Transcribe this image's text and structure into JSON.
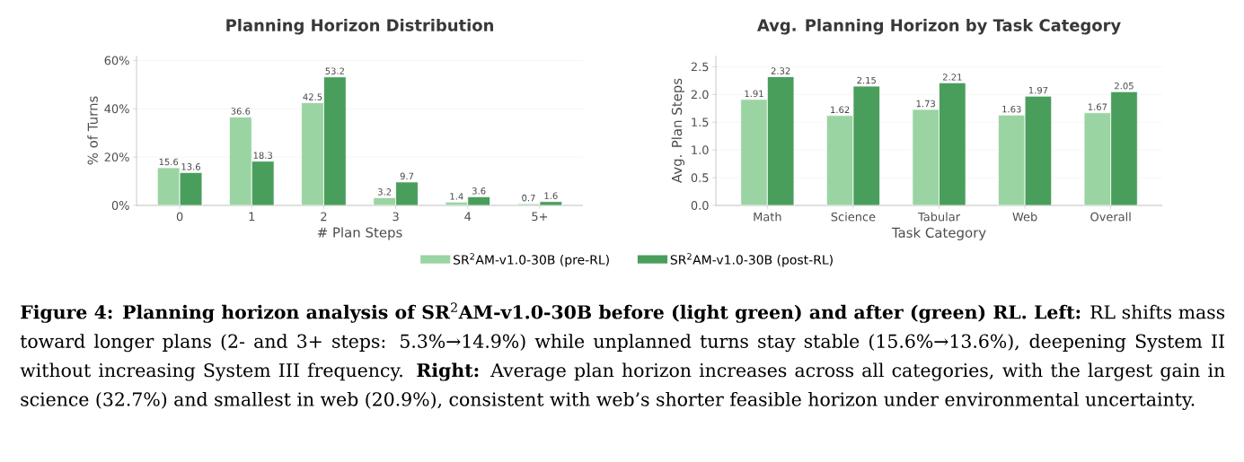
{
  "chart_data": [
    {
      "type": "bar",
      "title": "Planning Horizon Distribution",
      "xlabel": "# Plan Steps",
      "ylabel": "% of Turns",
      "categories": [
        "0",
        "1",
        "2",
        "3",
        "4",
        "5+"
      ],
      "series": [
        {
          "name": "SR$^{2}$AM-v1.0-30B (pre-RL)",
          "color": "#9ad4a2",
          "values": [
            15.6,
            36.6,
            42.5,
            3.2,
            1.4,
            0.7
          ]
        },
        {
          "name": "SR$^{2}$AM-v1.0-30B (post-RL)",
          "color": "#4a9e5c",
          "values": [
            13.6,
            18.3,
            53.2,
            9.7,
            3.6,
            1.6
          ]
        }
      ],
      "ylim": [
        0,
        62
      ],
      "yticks": [
        {
          "value": 0,
          "label": "0%"
        },
        {
          "value": 20,
          "label": "20%"
        },
        {
          "value": 40,
          "label": "40%"
        },
        {
          "value": 60,
          "label": "60%"
        }
      ],
      "grid": "y",
      "legend": "bottom",
      "data_labels": true
    },
    {
      "type": "bar",
      "title": "Avg. Planning Horizon by Task Category",
      "xlabel": "Task Category",
      "ylabel": "Avg. Plan Steps",
      "categories": [
        "Math",
        "Science",
        "Tabular",
        "Web",
        "Overall"
      ],
      "series": [
        {
          "color": "#9ad4a2",
          "values": [
            1.91,
            1.62,
            1.73,
            1.63,
            1.67
          ]
        },
        {
          "color": "#4a9e5c",
          "values": [
            2.32,
            2.15,
            2.21,
            1.97,
            2.05
          ]
        }
      ],
      "ylim": [
        0,
        2.7
      ],
      "yticks": [
        {
          "value": 0,
          "label": "0.0"
        },
        0.5,
        {
          "value": 1,
          "label": "1.0"
        },
        1.5,
        {
          "value": 2,
          "label": "2.0"
        },
        2.5
      ],
      "grid": "y",
      "data_labels": true,
      "annotations": [
        "**Figure 4: Planning horizon analysis of SR**$^{2}$**AM-v1.0-30B before (light green) and after (green) RL. Left:** RL shifts mass toward longer plans (2- and 3+ steps: 5.3%→14.9%) while unplanned turns stay stable (15.6%→13.6%), deepening System II without increasing System III frequency. **Right:** Average plan horizon increases across all categories, with the largest gain in science (32.7%) and smallest in web (20.9%), consistent with web’s shorter feasible horizon under environmental uncertainty."
      ]
    }
  ]
}
